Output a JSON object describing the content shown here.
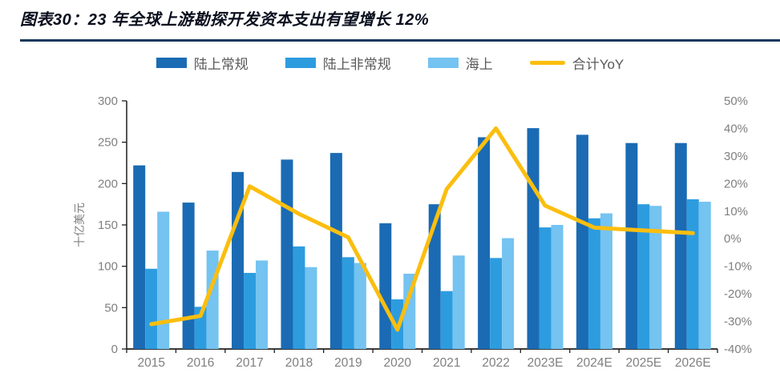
{
  "figure": {
    "title": "图表30：23 年全球上游勘探开发资本支出有望增长 12%"
  },
  "chart_data": {
    "type": "bar",
    "subtype": "grouped bars with line overlay on secondary percent axis",
    "categories": [
      "2015",
      "2016",
      "2017",
      "2018",
      "2019",
      "2020",
      "2021",
      "2022",
      "2023E",
      "2024E",
      "2025E",
      "2026E"
    ],
    "series": [
      {
        "name": "陆上常规",
        "key": "onshore-conventional",
        "type": "bar",
        "color": "#1a6bb4",
        "values": [
          222,
          177,
          214,
          229,
          237,
          152,
          175,
          256,
          267,
          259,
          249,
          249
        ]
      },
      {
        "name": "陆上非常规",
        "key": "onshore-unconventional",
        "type": "bar",
        "color": "#2d9cdf",
        "values": [
          97,
          51,
          92,
          124,
          111,
          60,
          70,
          110,
          147,
          158,
          175,
          181
        ]
      },
      {
        "name": "海上",
        "key": "offshore",
        "type": "bar",
        "color": "#74c3f0",
        "values": [
          166,
          119,
          107,
          99,
          104,
          91,
          113,
          134,
          150,
          164,
          173,
          178
        ]
      },
      {
        "name": "合计YoY",
        "key": "total-yoy",
        "type": "line",
        "axis": "right",
        "color": "#fbbe0f",
        "values": [
          -31,
          -28,
          19,
          9,
          0.5,
          -33,
          18,
          40,
          12,
          4,
          3,
          2
        ]
      }
    ],
    "left_axis": {
      "label": "十亿美元",
      "min": 0,
      "max": 300,
      "step": 50
    },
    "right_axis": {
      "min": -40,
      "max": 50,
      "step": 10,
      "suffix": "%"
    },
    "legend_position": "top",
    "grid": false,
    "colors": {
      "axis_line": "#1f1f1f",
      "tick_label": "#7f7f7f",
      "legend_text": "#595959",
      "title_rule": "#17375e"
    }
  }
}
